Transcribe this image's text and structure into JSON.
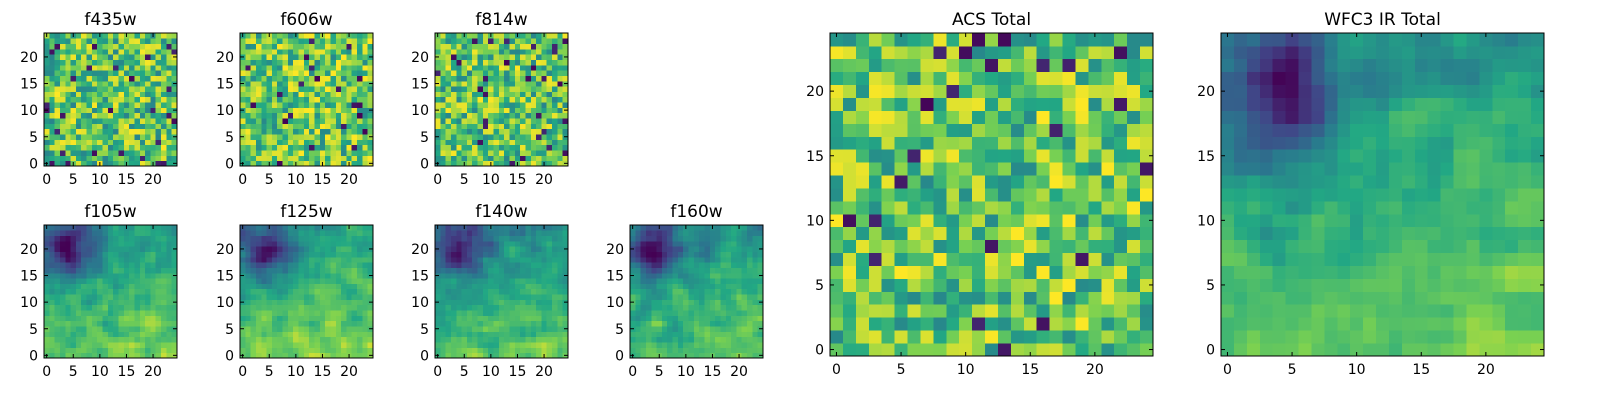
{
  "figure": {
    "colormap": "viridis",
    "colormap_stops": [
      "#440154",
      "#414487",
      "#2a788e",
      "#22a884",
      "#7ad151",
      "#fde725"
    ]
  },
  "chart_data": [
    {
      "id": "f435w",
      "type": "heatmap",
      "title": "f435w",
      "grid": false,
      "xlim": [
        -0.5,
        24.5
      ],
      "ylim": [
        -0.5,
        24.5
      ],
      "xticks": [
        0,
        5,
        10,
        15,
        20
      ],
      "yticks": [
        0,
        5,
        10,
        15,
        20
      ],
      "shape": [
        25,
        25
      ],
      "pattern": "noise",
      "value_range": [
        0,
        1
      ],
      "mean_level": 0.72
    },
    {
      "id": "f606w",
      "type": "heatmap",
      "title": "f606w",
      "grid": false,
      "xlim": [
        -0.5,
        24.5
      ],
      "ylim": [
        -0.5,
        24.5
      ],
      "xticks": [
        0,
        5,
        10,
        15,
        20
      ],
      "yticks": [
        0,
        5,
        10,
        15,
        20
      ],
      "shape": [
        25,
        25
      ],
      "pattern": "noise",
      "value_range": [
        0,
        1
      ],
      "mean_level": 0.74
    },
    {
      "id": "f814w",
      "type": "heatmap",
      "title": "f814w",
      "grid": false,
      "xlim": [
        -0.5,
        24.5
      ],
      "ylim": [
        -0.5,
        24.5
      ],
      "xticks": [
        0,
        5,
        10,
        15,
        20
      ],
      "yticks": [
        0,
        5,
        10,
        15,
        20
      ],
      "shape": [
        25,
        25
      ],
      "pattern": "noise",
      "value_range": [
        0,
        1
      ],
      "mean_level": 0.72
    },
    {
      "id": "f105w",
      "type": "heatmap",
      "title": "f105w",
      "grid": false,
      "xlim": [
        -0.5,
        24.5
      ],
      "ylim": [
        -0.5,
        24.5
      ],
      "xticks": [
        0,
        5,
        10,
        15,
        20
      ],
      "yticks": [
        0,
        5,
        10,
        15,
        20
      ],
      "shape": [
        25,
        25
      ],
      "pattern": "gradient",
      "value_range": [
        0,
        1
      ],
      "mean_level": 0.62
    },
    {
      "id": "f125w",
      "type": "heatmap",
      "title": "f125w",
      "grid": false,
      "xlim": [
        -0.5,
        24.5
      ],
      "ylim": [
        -0.5,
        24.5
      ],
      "xticks": [
        0,
        5,
        10,
        15,
        20
      ],
      "yticks": [
        0,
        5,
        10,
        15,
        20
      ],
      "shape": [
        25,
        25
      ],
      "pattern": "gradient",
      "value_range": [
        0,
        1
      ],
      "mean_level": 0.66
    },
    {
      "id": "f140w",
      "type": "heatmap",
      "title": "f140w",
      "grid": false,
      "xlim": [
        -0.5,
        24.5
      ],
      "ylim": [
        -0.5,
        24.5
      ],
      "xticks": [
        0,
        5,
        10,
        15,
        20
      ],
      "yticks": [
        0,
        5,
        10,
        15,
        20
      ],
      "shape": [
        25,
        25
      ],
      "pattern": "gradient",
      "value_range": [
        0,
        1
      ],
      "mean_level": 0.58
    },
    {
      "id": "f160w",
      "type": "heatmap",
      "title": "f160w",
      "grid": false,
      "xlim": [
        -0.5,
        24.5
      ],
      "ylim": [
        -0.5,
        24.5
      ],
      "xticks": [
        0,
        5,
        10,
        15,
        20
      ],
      "yticks": [
        0,
        5,
        10,
        15,
        20
      ],
      "shape": [
        25,
        25
      ],
      "pattern": "gradient",
      "value_range": [
        0,
        1
      ],
      "mean_level": 0.6
    },
    {
      "id": "acs-total",
      "type": "heatmap",
      "title": "ACS Total",
      "grid": false,
      "xlim": [
        -0.5,
        24.5
      ],
      "ylim": [
        -0.5,
        24.5
      ],
      "xticks": [
        0,
        5,
        10,
        15,
        20
      ],
      "yticks": [
        0,
        5,
        10,
        15,
        20
      ],
      "shape": [
        25,
        25
      ],
      "pattern": "noise",
      "value_range": [
        0,
        1
      ],
      "mean_level": 0.74
    },
    {
      "id": "wfc3-ir-total",
      "type": "heatmap",
      "title": "WFC3 IR Total",
      "grid": false,
      "xlim": [
        -0.5,
        24.5
      ],
      "ylim": [
        -0.5,
        24.5
      ],
      "xticks": [
        0,
        5,
        10,
        15,
        20
      ],
      "yticks": [
        0,
        5,
        10,
        15,
        20
      ],
      "shape": [
        25,
        25
      ],
      "pattern": "gradient",
      "value_range": [
        0,
        1
      ],
      "mean_level": 0.62
    }
  ]
}
